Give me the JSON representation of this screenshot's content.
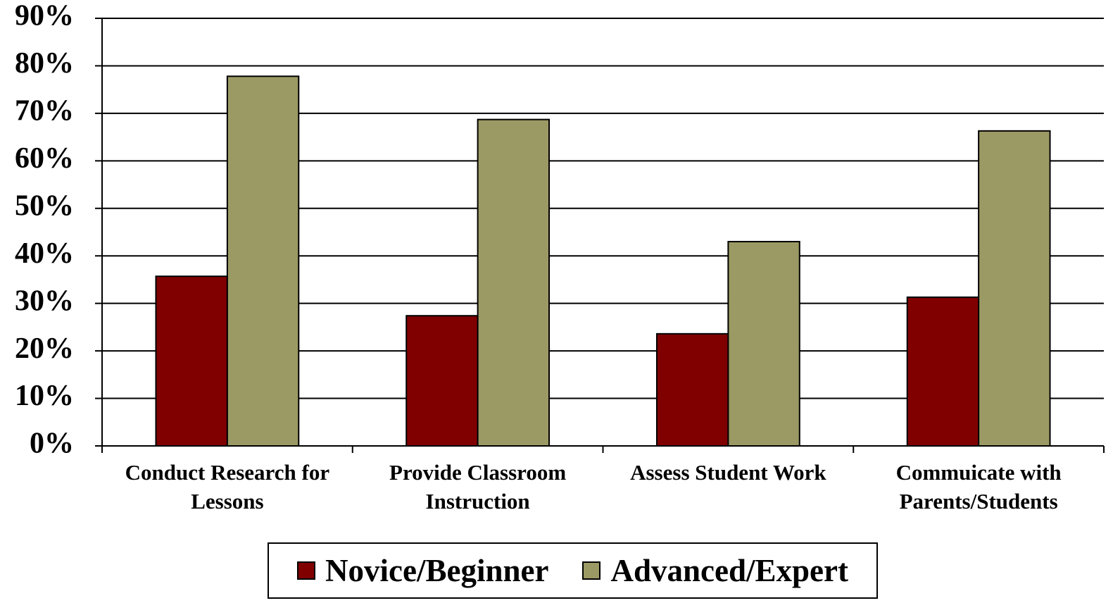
{
  "chart_data": {
    "type": "bar",
    "categories": [
      "Conduct Research for Lessons",
      "Provide Classroom Instruction",
      "Assess Student Work",
      "Commuicate with Parents/Students"
    ],
    "series": [
      {
        "name": "Novice/Beginner",
        "color": "#800000",
        "values": [
          35.7,
          27.4,
          23.6,
          31.3
        ]
      },
      {
        "name": "Advanced/Expert",
        "color": "#9c9a64",
        "values": [
          77.8,
          68.7,
          43.0,
          66.3
        ]
      }
    ],
    "ylim": [
      0,
      90
    ],
    "yticks": [
      {
        "value": 0,
        "label": "0%"
      },
      {
        "value": 10,
        "label": "10%"
      },
      {
        "value": 20,
        "label": "20%"
      },
      {
        "value": 30,
        "label": "30%"
      },
      {
        "value": 40,
        "label": "40%"
      },
      {
        "value": 50,
        "label": "50%"
      },
      {
        "value": 60,
        "label": "60%"
      },
      {
        "value": 70,
        "label": "70%"
      },
      {
        "value": 80,
        "label": "80%"
      },
      {
        "value": 90,
        "label": "90%"
      }
    ],
    "grid": true,
    "legend": "bottom"
  }
}
